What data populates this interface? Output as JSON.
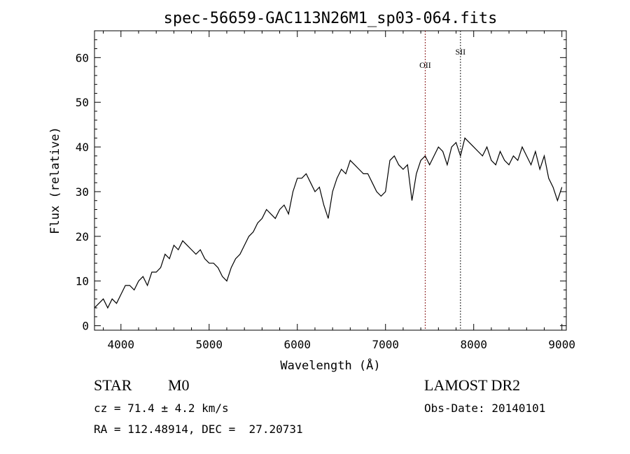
{
  "chart_data": {
    "type": "line",
    "title": "spec-56659-GAC113N26M1_sp03-064.fits",
    "xlabel": "Wavelength (Å)",
    "ylabel": "Flux (relative)",
    "xlim": [
      3700,
      9050
    ],
    "ylim": [
      -1,
      66
    ],
    "xticks": [
      4000,
      5000,
      6000,
      7000,
      8000,
      9000
    ],
    "yticks": [
      0,
      10,
      20,
      30,
      40,
      50,
      60
    ],
    "grid": false,
    "series": [
      {
        "x": [
          3700,
          3750,
          3800,
          3850,
          3900,
          3950,
          4000,
          4050,
          4100,
          4150,
          4200,
          4250,
          4300,
          4350,
          4400,
          4450,
          4500,
          4550,
          4600,
          4650,
          4700,
          4750,
          4800,
          4850,
          4900,
          4950,
          5000,
          5050,
          5100,
          5150,
          5200,
          5250,
          5300,
          5350,
          5400,
          5450,
          5500,
          5550,
          5600,
          5650,
          5700,
          5750,
          5800,
          5850,
          5900,
          5950,
          6000,
          6050,
          6100,
          6150,
          6200,
          6250,
          6300,
          6350,
          6400,
          6450,
          6500,
          6550,
          6600,
          6650,
          6700,
          6750,
          6800,
          6850,
          6900,
          6950,
          7000,
          7050,
          7100,
          7150,
          7200,
          7250,
          7300,
          7350,
          7400,
          7450,
          7500,
          7550,
          7600,
          7650,
          7700,
          7750,
          7800,
          7850,
          7900,
          7950,
          8000,
          8050,
          8100,
          8150,
          8200,
          8250,
          8300,
          8350,
          8400,
          8450,
          8500,
          8550,
          8600,
          8650,
          8700,
          8750,
          8800,
          8850,
          8900,
          8950,
          9000
        ],
        "y": [
          4,
          5,
          6,
          4,
          6,
          5,
          7,
          9,
          9,
          8,
          10,
          11,
          9,
          12,
          12,
          13,
          16,
          15,
          18,
          17,
          19,
          18,
          17,
          16,
          17,
          15,
          14,
          14,
          13,
          11,
          10,
          13,
          15,
          16,
          18,
          20,
          21,
          23,
          24,
          26,
          25,
          24,
          26,
          27,
          25,
          30,
          33,
          33,
          34,
          32,
          30,
          31,
          27,
          24,
          30,
          33,
          35,
          34,
          37,
          36,
          35,
          34,
          34,
          32,
          30,
          29,
          30,
          37,
          38,
          36,
          35,
          36,
          28,
          34,
          37,
          38,
          36,
          38,
          40,
          39,
          36,
          40,
          41,
          38,
          42,
          41,
          40,
          39,
          38,
          40,
          37,
          36,
          39,
          37,
          36,
          38,
          37,
          40,
          38,
          36,
          39,
          35,
          38,
          33,
          31,
          28,
          31
        ]
      }
    ],
    "annotations": [
      {
        "label": "OII",
        "x": 7450,
        "color": "#8b1a1a"
      },
      {
        "label": "SII",
        "x": 7850,
        "color": "#1a1a1a"
      }
    ]
  },
  "info": {
    "class_label": "STAR",
    "subclass_label": "M0",
    "cz_text": "cz = 71.4 ± 4.2 km/s",
    "coords_text": "RA = 112.48914, DEC =  27.20731",
    "survey_label": "LAMOST DR2",
    "obs_date_text": "Obs-Date: 20140101"
  }
}
